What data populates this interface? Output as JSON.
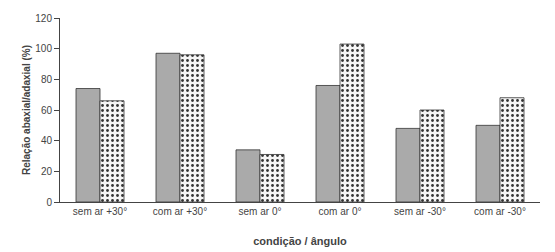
{
  "chart_data": {
    "type": "bar",
    "xlabel": "condição / ângulo",
    "ylabel": "Relação abaxial/adaxial (%)",
    "categories": [
      "sem ar +30°",
      "com ar +30°",
      "sem ar 0°",
      "com ar 0°",
      "sem ar -30°",
      "com ar -30°"
    ],
    "series": [
      {
        "color": "#aaaaaa",
        "values": [
          74,
          97,
          34,
          76,
          48,
          50
        ]
      },
      {
        "color": "#f5f5f5",
        "values": [
          66,
          96,
          31,
          103,
          60,
          68
        ]
      }
    ],
    "ylim": [
      0,
      120
    ],
    "yticks": [
      0,
      20,
      40,
      60,
      80,
      100,
      120
    ],
    "grid": false
  }
}
